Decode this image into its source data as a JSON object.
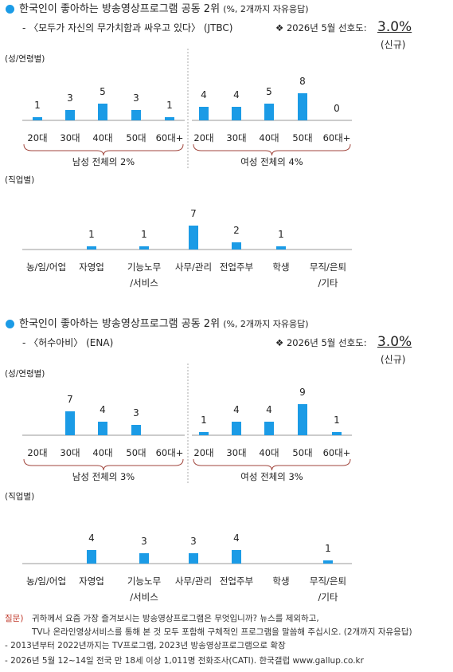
{
  "sections": [
    {
      "title": "한국인이 좋아하는 방송영상프로그램 공동 2위",
      "title_note": "(%, 2개까지 자유응답)",
      "program": "- 〈모두가 자신의 무가치함과 싸우고 있다〉 (JTBC)",
      "date_label": "❖ 2026년 5월 선호도:",
      "score": "3.0%",
      "tag": "(신규)"
    },
    {
      "title": "한국인이 좋아하는 방송영상프로그램 공동 2위",
      "title_note": "(%, 2개까지 자유응답)",
      "program": "- 〈허수아비〉 (ENA)",
      "date_label": "❖ 2026년 5월 선호도:",
      "score": "3.0%",
      "tag": "(신규)"
    }
  ],
  "chart_data": [
    {
      "type": "bar",
      "label": "(성/연령별)",
      "categories": [
        "20대",
        "30대",
        "40대",
        "50대",
        "60대+",
        "20대",
        "30대",
        "40대",
        "50대",
        "60대+"
      ],
      "values": [
        1,
        3,
        5,
        3,
        1,
        4,
        4,
        5,
        8,
        0
      ],
      "groups": [
        {
          "label": "남성 전체의 2%"
        },
        {
          "label": "여성 전체의 4%"
        }
      ],
      "color": "#1b9be6",
      "ylim": [
        0,
        10
      ]
    },
    {
      "type": "bar",
      "label": "(직업별)",
      "categories": [
        "농/임/어업",
        "자영업",
        "기능노무\n/서비스",
        "사무/관리",
        "전업주부",
        "학생",
        "무직/은퇴\n/기타"
      ],
      "values": [
        null,
        1,
        1,
        7,
        2,
        1,
        null
      ],
      "color": "#1b9be6",
      "ylim": [
        0,
        10
      ]
    },
    {
      "type": "bar",
      "label": "(성/연령별)",
      "categories": [
        "20대",
        "30대",
        "40대",
        "50대",
        "60대+",
        "20대",
        "30대",
        "40대",
        "50대",
        "60대+"
      ],
      "values": [
        null,
        7,
        4,
        3,
        null,
        1,
        4,
        4,
        9,
        1
      ],
      "groups": [
        {
          "label": "남성 전체의 3%"
        },
        {
          "label": "여성 전체의 3%"
        }
      ],
      "color": "#1b9be6",
      "ylim": [
        0,
        10
      ]
    },
    {
      "type": "bar",
      "label": "(직업별)",
      "categories": [
        "농/임/어업",
        "자영업",
        "기능노무\n/서비스",
        "사무/관리",
        "전업주부",
        "학생",
        "무직/은퇴\n/기타"
      ],
      "values": [
        null,
        4,
        3,
        3,
        4,
        null,
        1
      ],
      "color": "#1b9be6",
      "ylim": [
        0,
        10
      ]
    }
  ],
  "footnotes": {
    "question_label": "질문)",
    "question": [
      "귀하께서 요즘 가장 즐겨보시는 방송영상프로그램은 무엇입니까? 뉴스를 제외하고,",
      "TV나 온라인영상서비스를 통해 본 것 모두 포함해 구체적인 프로그램을 말씀해 주십시오. (2개까지 자유응답)"
    ],
    "notes": [
      "- 2013년부터 2022년까지는 TV프로그램, 2023년 방송영상프로그램으로 확장",
      "- 2026년 5월 12~14일 전국 만 18세 이상 1,011명 전화조사(CATI). 한국갤럽 www.gallup.co.kr"
    ]
  }
}
